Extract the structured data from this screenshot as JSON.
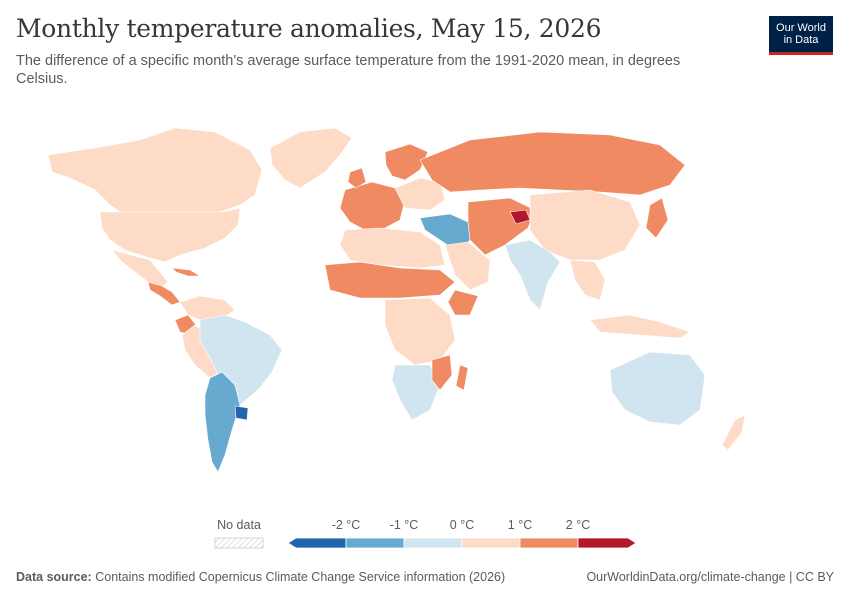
{
  "header": {
    "title": "Monthly temperature anomalies, May 15, 2026",
    "subtitle": "The difference of a specific month's average surface temperature from the 1991-2020 mean, in degrees Celsius."
  },
  "logo": {
    "line1": "Our World",
    "line2": "in Data"
  },
  "legend": {
    "no_data_label": "No data",
    "tick_labels": [
      "-2 °C",
      "-1 °C",
      "0 °C",
      "1 °C",
      "2 °C"
    ],
    "bins": [
      {
        "from": -3,
        "to": -2,
        "color": "#2166ac"
      },
      {
        "from": -2,
        "to": -1,
        "color": "#67a9cf"
      },
      {
        "from": -1,
        "to": 0,
        "color": "#d1e5f0"
      },
      {
        "from": 0,
        "to": 1,
        "color": "#fddbc7"
      },
      {
        "from": 1,
        "to": 2,
        "color": "#ef8a62"
      },
      {
        "from": 2,
        "to": 3,
        "color": "#b2182b"
      }
    ]
  },
  "colors": {
    "below_minus2": "#2166ac",
    "minus2_minus1": "#67a9cf",
    "minus1_0": "#d1e5f0",
    "zero_1": "#fddbc7",
    "one_2": "#ef8a62",
    "above2": "#b2182b",
    "no_data": "#eeeeee"
  },
  "regions": [
    {
      "name": "Canada & Alaska",
      "bin": "zero_1"
    },
    {
      "name": "United States",
      "bin": "zero_1"
    },
    {
      "name": "Greenland",
      "bin": "zero_1"
    },
    {
      "name": "Mexico",
      "bin": "zero_1"
    },
    {
      "name": "Central America",
      "bin": "one_2"
    },
    {
      "name": "Colombia / Venezuela",
      "bin": "zero_1"
    },
    {
      "name": "Ecuador",
      "bin": "one_2"
    },
    {
      "name": "Brazil",
      "bin": "minus1_0"
    },
    {
      "name": "Argentina / Chile",
      "bin": "minus2_minus1"
    },
    {
      "name": "Uruguay",
      "bin": "below_minus2"
    },
    {
      "name": "Western Europe",
      "bin": "one_2"
    },
    {
      "name": "Scandinavia",
      "bin": "one_2"
    },
    {
      "name": "Russia",
      "bin": "one_2"
    },
    {
      "name": "Turkey / Middle East",
      "bin": "minus2_minus1"
    },
    {
      "name": "Central Asia",
      "bin": "one_2"
    },
    {
      "name": "Kyrgyzstan",
      "bin": "above2"
    },
    {
      "name": "China / Mongolia",
      "bin": "zero_1"
    },
    {
      "name": "India",
      "bin": "minus1_0"
    },
    {
      "name": "Japan",
      "bin": "one_2"
    },
    {
      "name": "Northern Africa",
      "bin": "zero_1"
    },
    {
      "name": "Sahel",
      "bin": "one_2"
    },
    {
      "name": "Central Africa",
      "bin": "zero_1"
    },
    {
      "name": "Southern Africa",
      "bin": "minus1_0"
    },
    {
      "name": "Mozambique / Madagascar",
      "bin": "one_2"
    },
    {
      "name": "Southeast Asia",
      "bin": "zero_1"
    },
    {
      "name": "Australia",
      "bin": "minus1_0"
    },
    {
      "name": "New Zealand",
      "bin": "zero_1"
    }
  ],
  "footer": {
    "source_label": "Data source:",
    "source_text": "Contains modified Copernicus Climate Change Service information (2026)",
    "link_text": "OurWorldinData.org/climate-change | CC BY"
  }
}
